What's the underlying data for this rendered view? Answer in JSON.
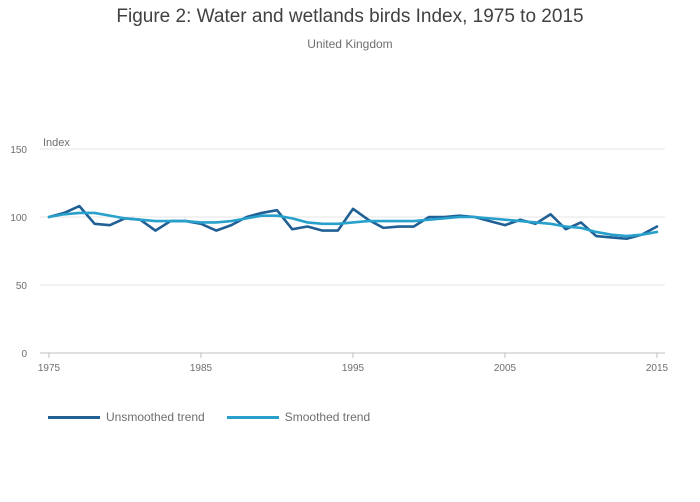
{
  "title": "Figure 2: Water and wetlands birds Index, 1975 to 2015",
  "subtitle": "United Kingdom",
  "colors": {
    "unsmoothed": "#206095",
    "smoothed": "#27a0cc",
    "grid": "#e6e6e6",
    "axis": "#bfbfbf"
  },
  "chart_data": {
    "type": "line",
    "ylabel": "Index",
    "xlabel": "",
    "ylim": [
      0,
      150
    ],
    "xlim": [
      1975,
      2015
    ],
    "yticks": [
      0,
      50,
      100,
      150
    ],
    "xticks": [
      1975,
      1985,
      1995,
      2005,
      2015
    ],
    "grid": true,
    "legend_position": "bottom-left",
    "x": [
      1975,
      1976,
      1977,
      1978,
      1979,
      1980,
      1981,
      1982,
      1983,
      1984,
      1985,
      1986,
      1987,
      1988,
      1989,
      1990,
      1991,
      1992,
      1993,
      1994,
      1995,
      1996,
      1997,
      1998,
      1999,
      2000,
      2001,
      2002,
      2003,
      2004,
      2005,
      2006,
      2007,
      2008,
      2009,
      2010,
      2011,
      2012,
      2013,
      2014,
      2015
    ],
    "series": [
      {
        "name": "Unsmoothed trend",
        "values": [
          100,
          103,
          108,
          95,
          94,
          99,
          98,
          90,
          97,
          97,
          95,
          90,
          94,
          100,
          103,
          105,
          91,
          93,
          90,
          90,
          106,
          98,
          92,
          93,
          93,
          100,
          100,
          101,
          100,
          97,
          94,
          98,
          95,
          102,
          91,
          96,
          86,
          85,
          84,
          87,
          93
        ]
      },
      {
        "name": "Smoothed trend",
        "values": [
          100,
          102,
          103,
          103,
          101,
          99,
          98,
          97,
          97,
          97,
          96,
          96,
          97,
          99,
          101,
          101,
          99,
          96,
          95,
          95,
          96,
          97,
          97,
          97,
          97,
          98,
          99,
          100,
          100,
          99,
          98,
          97,
          96,
          95,
          93,
          92,
          89,
          87,
          86,
          87,
          89
        ]
      }
    ]
  }
}
